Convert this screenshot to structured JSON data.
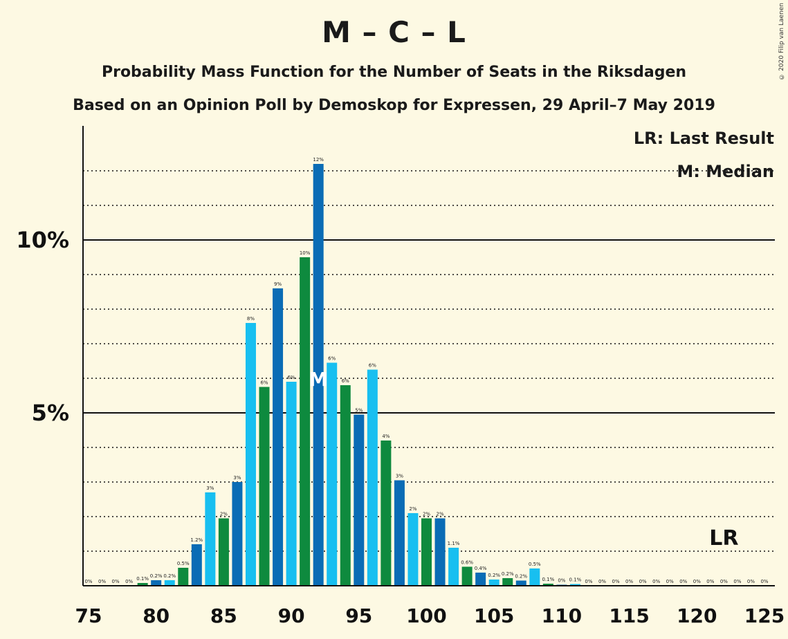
{
  "title": "M – C – L",
  "subtitle1": "Probability Mass Function for the Number of Seats in the Riksdagen",
  "subtitle2": "Based on an Opinion Poll by Demoskop for Expressen, 29 April–7 May 2019",
  "copyright": "© 2020 Filip van Laenen",
  "legend": {
    "last_result": "LR: Last Result",
    "median": "M: Median"
  },
  "markers": {
    "median_label": "M",
    "median_seat": 92,
    "lr_label": "LR",
    "lr_seat": 122
  },
  "colors": {
    "dark_blue": "#0a6cb5",
    "green": "#0e8a3e",
    "light_blue": "#18bff0",
    "background": "#fdf9e3"
  },
  "chart_data": {
    "type": "bar",
    "x": [
      75,
      76,
      77,
      78,
      79,
      80,
      81,
      82,
      83,
      84,
      85,
      86,
      87,
      88,
      89,
      90,
      91,
      92,
      93,
      94,
      95,
      96,
      97,
      98,
      99,
      100,
      101,
      102,
      103,
      104,
      105,
      106,
      107,
      108,
      109,
      110,
      111,
      112,
      113,
      114,
      115,
      116,
      117,
      118,
      119,
      120,
      121,
      122,
      123,
      124,
      125
    ],
    "values": [
      0,
      0,
      0,
      0,
      0.08,
      0.16,
      0.16,
      0.52,
      1.2,
      2.7,
      1.95,
      3.0,
      7.6,
      5.75,
      8.6,
      5.9,
      9.5,
      12.2,
      6.45,
      5.8,
      4.95,
      6.25,
      4.2,
      3.05,
      2.1,
      1.95,
      1.95,
      1.1,
      0.55,
      0.38,
      0.18,
      0.22,
      0.15,
      0.5,
      0.06,
      0.03,
      0.05,
      0,
      0,
      0,
      0,
      0,
      0,
      0,
      0,
      0,
      0,
      0,
      0,
      0,
      0
    ],
    "labels": [
      "0%",
      "0%",
      "0%",
      "0%",
      "0.1%",
      "0.2%",
      "0.2%",
      "0.5%",
      "1.2%",
      "3%",
      "2%",
      "3%",
      "8%",
      "6%",
      "9%",
      "6%",
      "10%",
      "12%",
      "6%",
      "6%",
      "5%",
      "6%",
      "4%",
      "3%",
      "2%",
      "2%",
      "2%",
      "1.1%",
      "0.6%",
      "0.4%",
      "0.2%",
      "0.2%",
      "0.2%",
      "0.5%",
      "0.1%",
      "0%",
      "0.1%",
      "0%",
      "0%",
      "0%",
      "0%",
      "0%",
      "0%",
      "0%",
      "0%",
      "0%",
      "0%",
      "0%",
      "0%",
      "0%",
      "0%"
    ],
    "bar_colors": [
      "light_blue",
      "dark_blue",
      "green",
      "light_blue",
      "green",
      "dark_blue",
      "light_blue",
      "green",
      "dark_blue",
      "light_blue",
      "green",
      "dark_blue",
      "light_blue",
      "green",
      "dark_blue",
      "light_blue",
      "green",
      "dark_blue",
      "light_blue",
      "green",
      "dark_blue",
      "light_blue",
      "green",
      "dark_blue",
      "light_blue",
      "green",
      "dark_blue",
      "light_blue",
      "green",
      "dark_blue",
      "light_blue",
      "green",
      "dark_blue",
      "light_blue",
      "green",
      "dark_blue",
      "light_blue",
      "green",
      "dark_blue",
      "light_blue",
      "green",
      "dark_blue",
      "light_blue",
      "green",
      "dark_blue",
      "light_blue",
      "green",
      "dark_blue",
      "light_blue",
      "green",
      "dark_blue"
    ],
    "x_ticks": [
      75,
      80,
      85,
      90,
      95,
      100,
      105,
      110,
      115,
      120,
      125
    ],
    "y_ticks": [
      {
        "value": 5,
        "label": "5%"
      },
      {
        "value": 10,
        "label": "10%"
      }
    ],
    "ylim": [
      0,
      13.3
    ],
    "grid": "dotted every 1%, solid at 5% and 10%"
  }
}
